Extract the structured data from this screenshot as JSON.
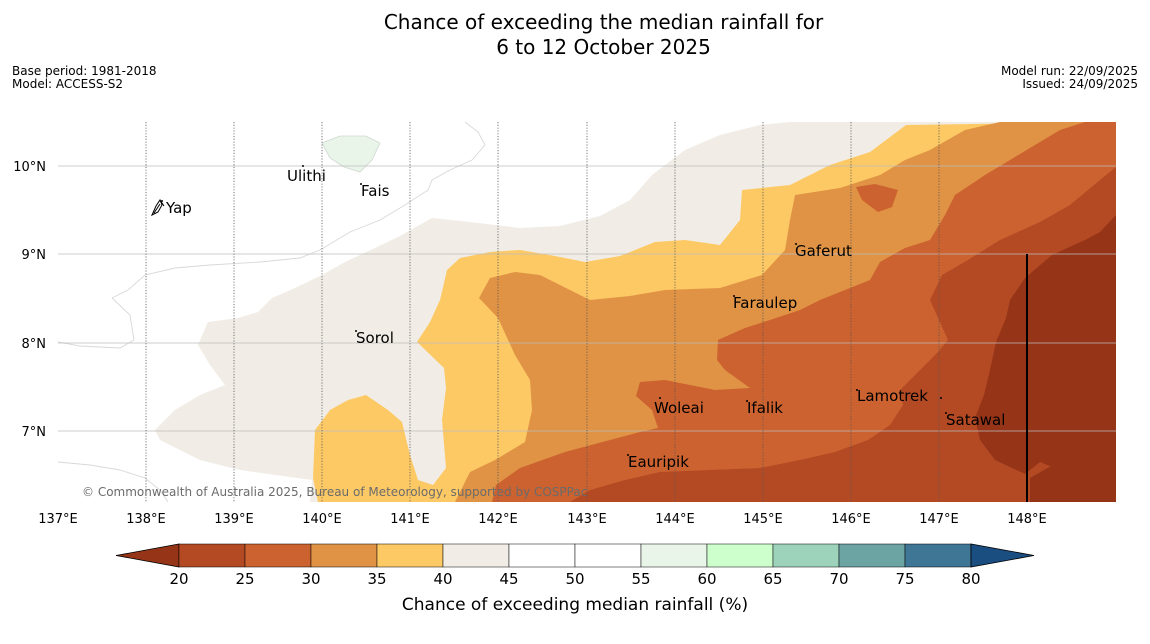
{
  "header": {
    "title_line1": "Chance of exceeding the median rainfall for",
    "title_line2": "6 to 12 October 2025",
    "base_period": "Base period: 1981-2018",
    "model": "Model: ACCESS-S2",
    "model_run": "Model run: 22/09/2025",
    "issued": "Issued: 24/09/2025"
  },
  "map": {
    "lon_ticks": [
      "137°E",
      "138°E",
      "139°E",
      "140°E",
      "141°E",
      "142°E",
      "143°E",
      "144°E",
      "145°E",
      "146°E",
      "147°E",
      "148°E"
    ],
    "lat_ticks": [
      "10°N",
      "9°N",
      "8°N",
      "7°N"
    ],
    "places": [
      {
        "name": "Yap"
      },
      {
        "name": "Ulithi"
      },
      {
        "name": "Fais"
      },
      {
        "name": "Gaferut"
      },
      {
        "name": "Faraulep"
      },
      {
        "name": "Sorol"
      },
      {
        "name": "Woleai"
      },
      {
        "name": "Ifalik"
      },
      {
        "name": "Lamotrek"
      },
      {
        "name": "Satawal"
      },
      {
        "name": "Eauripik"
      }
    ],
    "copyright": "© Commonwealth of Australia 2025, Bureau of Meteorology, supported by COSPPac"
  },
  "colorbar": {
    "label": "Chance of exceeding median rainfall (%)",
    "ticks": [
      "20",
      "25",
      "30",
      "35",
      "40",
      "45",
      "50",
      "55",
      "60",
      "65",
      "70",
      "75",
      "80"
    ],
    "colors": {
      "under": "#963418",
      "c20_25": "#b44a24",
      "c25_30": "#cb622f",
      "c30_35": "#e09344",
      "c35_40": "#fdc965",
      "c40_45": "#f1ede6",
      "c45_50": "#ffffff",
      "c50_55": "#ffffff",
      "c55_60": "#eaf5ea",
      "c60_65": "#ccffcc",
      "c65_70": "#9dd2bb",
      "c70_75": "#6ca3a3",
      "c75_80": "#3f7696",
      "over": "#1a4d80"
    }
  }
}
